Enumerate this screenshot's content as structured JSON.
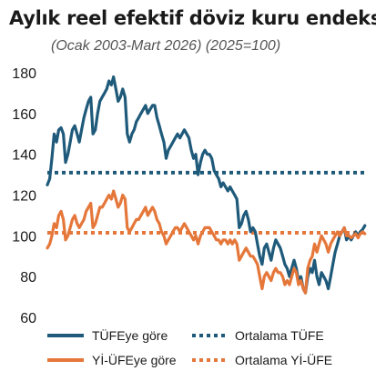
{
  "chart_data": {
    "type": "line",
    "title": "Aylık reel efektif döviz kuru endeksi",
    "subtitle": "(Ocak 2003-Mart 2026) (2025=100)",
    "ylim": [
      60,
      180
    ],
    "yticks": [
      60,
      80,
      100,
      120,
      140,
      160,
      180
    ],
    "xlim": [
      2003.0,
      2026.25
    ],
    "grid": false,
    "legend_position": "bottom",
    "colors": {
      "tufe": "#1f5a7a",
      "yiufe": "#e5773a"
    },
    "series": [
      {
        "name": "TÜFEye göre",
        "key": "tufe",
        "points": [
          [
            2003.0,
            125
          ],
          [
            2003.17,
            128
          ],
          [
            2003.33,
            138
          ],
          [
            2003.5,
            150
          ],
          [
            2003.67,
            146
          ],
          [
            2003.83,
            152
          ],
          [
            2004.0,
            153
          ],
          [
            2004.17,
            150
          ],
          [
            2004.33,
            136
          ],
          [
            2004.5,
            140
          ],
          [
            2004.67,
            146
          ],
          [
            2004.83,
            152
          ],
          [
            2005.0,
            154
          ],
          [
            2005.17,
            150
          ],
          [
            2005.33,
            146
          ],
          [
            2005.5,
            152
          ],
          [
            2005.67,
            158
          ],
          [
            2005.83,
            162
          ],
          [
            2006.0,
            166
          ],
          [
            2006.17,
            168
          ],
          [
            2006.33,
            150
          ],
          [
            2006.5,
            152
          ],
          [
            2006.67,
            160
          ],
          [
            2006.83,
            166
          ],
          [
            2007.0,
            168
          ],
          [
            2007.17,
            170
          ],
          [
            2007.33,
            172
          ],
          [
            2007.5,
            176
          ],
          [
            2007.67,
            174
          ],
          [
            2007.83,
            178
          ],
          [
            2008.0,
            172
          ],
          [
            2008.17,
            166
          ],
          [
            2008.33,
            168
          ],
          [
            2008.5,
            172
          ],
          [
            2008.67,
            168
          ],
          [
            2008.83,
            150
          ],
          [
            2009.0,
            146
          ],
          [
            2009.17,
            150
          ],
          [
            2009.33,
            152
          ],
          [
            2009.5,
            156
          ],
          [
            2009.67,
            158
          ],
          [
            2009.83,
            160
          ],
          [
            2010.0,
            162
          ],
          [
            2010.17,
            164
          ],
          [
            2010.33,
            160
          ],
          [
            2010.5,
            162
          ],
          [
            2010.67,
            164
          ],
          [
            2010.83,
            164
          ],
          [
            2011.0,
            158
          ],
          [
            2011.17,
            154
          ],
          [
            2011.33,
            150
          ],
          [
            2011.5,
            146
          ],
          [
            2011.67,
            138
          ],
          [
            2011.83,
            142
          ],
          [
            2012.0,
            144
          ],
          [
            2012.17,
            146
          ],
          [
            2012.33,
            148
          ],
          [
            2012.5,
            150
          ],
          [
            2012.67,
            148
          ],
          [
            2012.83,
            150
          ],
          [
            2013.0,
            152
          ],
          [
            2013.17,
            150
          ],
          [
            2013.33,
            148
          ],
          [
            2013.5,
            142
          ],
          [
            2013.67,
            138
          ],
          [
            2013.83,
            140
          ],
          [
            2014.0,
            130
          ],
          [
            2014.17,
            136
          ],
          [
            2014.33,
            140
          ],
          [
            2014.5,
            142
          ],
          [
            2014.67,
            140
          ],
          [
            2014.83,
            140
          ],
          [
            2015.0,
            138
          ],
          [
            2015.17,
            132
          ],
          [
            2015.33,
            130
          ],
          [
            2015.5,
            128
          ],
          [
            2015.67,
            124
          ],
          [
            2015.83,
            126
          ],
          [
            2016.0,
            124
          ],
          [
            2016.17,
            122
          ],
          [
            2016.33,
            124
          ],
          [
            2016.5,
            122
          ],
          [
            2016.67,
            120
          ],
          [
            2016.83,
            118
          ],
          [
            2017.0,
            104
          ],
          [
            2017.17,
            106
          ],
          [
            2017.33,
            110
          ],
          [
            2017.5,
            112
          ],
          [
            2017.67,
            108
          ],
          [
            2017.83,
            102
          ],
          [
            2018.0,
            104
          ],
          [
            2018.17,
            102
          ],
          [
            2018.33,
            96
          ],
          [
            2018.5,
            90
          ],
          [
            2018.67,
            86
          ],
          [
            2018.83,
            94
          ],
          [
            2019.0,
            96
          ],
          [
            2019.17,
            92
          ],
          [
            2019.33,
            88
          ],
          [
            2019.5,
            94
          ],
          [
            2019.67,
            98
          ],
          [
            2019.83,
            96
          ],
          [
            2020.0,
            94
          ],
          [
            2020.17,
            90
          ],
          [
            2020.33,
            86
          ],
          [
            2020.5,
            84
          ],
          [
            2020.67,
            80
          ],
          [
            2020.83,
            84
          ],
          [
            2021.0,
            88
          ],
          [
            2021.17,
            84
          ],
          [
            2021.33,
            78
          ],
          [
            2021.5,
            80
          ],
          [
            2021.67,
            74
          ],
          [
            2021.83,
            72
          ],
          [
            2022.0,
            80
          ],
          [
            2022.17,
            84
          ],
          [
            2022.33,
            82
          ],
          [
            2022.5,
            88
          ],
          [
            2022.67,
            80
          ],
          [
            2022.83,
            76
          ],
          [
            2023.0,
            82
          ],
          [
            2023.17,
            80
          ],
          [
            2023.33,
            78
          ],
          [
            2023.5,
            74
          ],
          [
            2023.67,
            80
          ],
          [
            2023.83,
            86
          ],
          [
            2024.0,
            92
          ],
          [
            2024.17,
            96
          ],
          [
            2024.33,
            100
          ],
          [
            2024.5,
            102
          ],
          [
            2024.67,
            104
          ],
          [
            2024.83,
            98
          ],
          [
            2025.0,
            100
          ],
          [
            2025.17,
            98
          ],
          [
            2025.33,
            100
          ],
          [
            2025.5,
            102
          ],
          [
            2025.67,
            100
          ],
          [
            2025.83,
            102
          ],
          [
            2026.0,
            103
          ],
          [
            2026.17,
            105
          ]
        ]
      },
      {
        "name": "Yİ-ÜFEye göre",
        "key": "yiufe",
        "points": [
          [
            2003.0,
            94
          ],
          [
            2003.17,
            96
          ],
          [
            2003.33,
            100
          ],
          [
            2003.5,
            106
          ],
          [
            2003.67,
            104
          ],
          [
            2003.83,
            110
          ],
          [
            2004.0,
            112
          ],
          [
            2004.17,
            108
          ],
          [
            2004.33,
            98
          ],
          [
            2004.5,
            100
          ],
          [
            2004.67,
            104
          ],
          [
            2004.83,
            108
          ],
          [
            2005.0,
            110
          ],
          [
            2005.17,
            106
          ],
          [
            2005.33,
            104
          ],
          [
            2005.5,
            106
          ],
          [
            2005.67,
            108
          ],
          [
            2005.83,
            112
          ],
          [
            2006.0,
            114
          ],
          [
            2006.17,
            116
          ],
          [
            2006.33,
            104
          ],
          [
            2006.5,
            106
          ],
          [
            2006.67,
            110
          ],
          [
            2006.83,
            114
          ],
          [
            2007.0,
            114
          ],
          [
            2007.17,
            116
          ],
          [
            2007.33,
            118
          ],
          [
            2007.5,
            120
          ],
          [
            2007.67,
            118
          ],
          [
            2007.83,
            122
          ],
          [
            2008.0,
            118
          ],
          [
            2008.17,
            114
          ],
          [
            2008.33,
            116
          ],
          [
            2008.5,
            120
          ],
          [
            2008.67,
            118
          ],
          [
            2008.83,
            104
          ],
          [
            2009.0,
            102
          ],
          [
            2009.17,
            104
          ],
          [
            2009.33,
            106
          ],
          [
            2009.5,
            108
          ],
          [
            2009.67,
            108
          ],
          [
            2009.83,
            110
          ],
          [
            2010.0,
            112
          ],
          [
            2010.17,
            114
          ],
          [
            2010.33,
            110
          ],
          [
            2010.5,
            112
          ],
          [
            2010.67,
            114
          ],
          [
            2010.83,
            112
          ],
          [
            2011.0,
            108
          ],
          [
            2011.17,
            106
          ],
          [
            2011.33,
            102
          ],
          [
            2011.5,
            100
          ],
          [
            2011.67,
            96
          ],
          [
            2011.83,
            98
          ],
          [
            2012.0,
            100
          ],
          [
            2012.17,
            102
          ],
          [
            2012.33,
            104
          ],
          [
            2012.5,
            104
          ],
          [
            2012.67,
            102
          ],
          [
            2012.83,
            104
          ],
          [
            2013.0,
            106
          ],
          [
            2013.17,
            104
          ],
          [
            2013.33,
            102
          ],
          [
            2013.5,
            100
          ],
          [
            2013.67,
            98
          ],
          [
            2013.83,
            100
          ],
          [
            2014.0,
            96
          ],
          [
            2014.17,
            100
          ],
          [
            2014.33,
            102
          ],
          [
            2014.5,
            104
          ],
          [
            2014.67,
            104
          ],
          [
            2014.83,
            104
          ],
          [
            2015.0,
            102
          ],
          [
            2015.17,
            100
          ],
          [
            2015.33,
            98
          ],
          [
            2015.5,
            98
          ],
          [
            2015.67,
            96
          ],
          [
            2015.83,
            98
          ],
          [
            2016.0,
            98
          ],
          [
            2016.17,
            96
          ],
          [
            2016.33,
            98
          ],
          [
            2016.5,
            96
          ],
          [
            2016.67,
            98
          ],
          [
            2016.83,
            96
          ],
          [
            2017.0,
            88
          ],
          [
            2017.17,
            90
          ],
          [
            2017.33,
            92
          ],
          [
            2017.5,
            94
          ],
          [
            2017.67,
            92
          ],
          [
            2017.83,
            90
          ],
          [
            2018.0,
            90
          ],
          [
            2018.17,
            88
          ],
          [
            2018.33,
            86
          ],
          [
            2018.5,
            80
          ],
          [
            2018.67,
            74
          ],
          [
            2018.83,
            80
          ],
          [
            2019.0,
            82
          ],
          [
            2019.17,
            80
          ],
          [
            2019.33,
            78
          ],
          [
            2019.5,
            82
          ],
          [
            2019.67,
            84
          ],
          [
            2019.83,
            82
          ],
          [
            2020.0,
            82
          ],
          [
            2020.17,
            80
          ],
          [
            2020.33,
            76
          ],
          [
            2020.5,
            78
          ],
          [
            2020.67,
            76
          ],
          [
            2020.83,
            80
          ],
          [
            2021.0,
            84
          ],
          [
            2021.17,
            82
          ],
          [
            2021.33,
            76
          ],
          [
            2021.5,
            78
          ],
          [
            2021.67,
            74
          ],
          [
            2021.83,
            72
          ],
          [
            2022.0,
            84
          ],
          [
            2022.17,
            88
          ],
          [
            2022.33,
            90
          ],
          [
            2022.5,
            96
          ],
          [
            2022.67,
            92
          ],
          [
            2022.83,
            96
          ],
          [
            2023.0,
            100
          ],
          [
            2023.17,
            98
          ],
          [
            2023.33,
            96
          ],
          [
            2023.5,
            92
          ],
          [
            2023.67,
            96
          ],
          [
            2023.83,
            98
          ],
          [
            2024.0,
            100
          ],
          [
            2024.17,
            102
          ],
          [
            2024.33,
            100
          ],
          [
            2024.5,
            102
          ],
          [
            2024.67,
            104
          ],
          [
            2024.83,
            100
          ],
          [
            2025.0,
            100
          ],
          [
            2025.17,
            99
          ],
          [
            2025.33,
            100
          ],
          [
            2025.5,
            101
          ],
          [
            2025.67,
            99
          ],
          [
            2025.83,
            101
          ],
          [
            2026.0,
            102
          ],
          [
            2026.17,
            101
          ]
        ]
      }
    ],
    "reference_lines": [
      {
        "name": "Ortalama TÜFE",
        "key": "tufe",
        "value": 131
      },
      {
        "name": "Ortalama Yİ-ÜFE",
        "key": "yiufe",
        "value": 101.5
      }
    ]
  }
}
